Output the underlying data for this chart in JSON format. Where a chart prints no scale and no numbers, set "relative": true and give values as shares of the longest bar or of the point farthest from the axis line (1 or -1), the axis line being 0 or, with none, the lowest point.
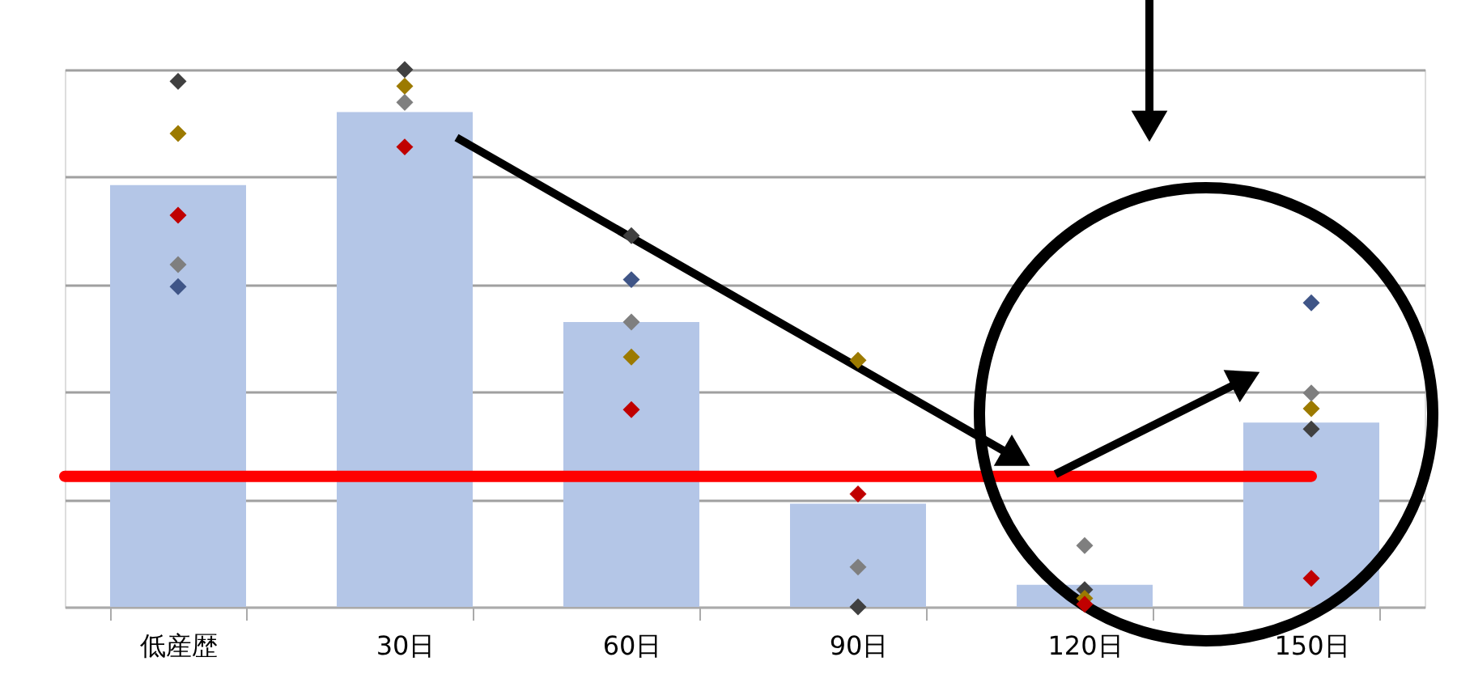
{
  "chart_data": {
    "type": "bar",
    "relative": true,
    "categories": [
      "低産歴",
      "30日",
      "60日",
      "90日",
      "120日",
      "150日"
    ],
    "series": [
      {
        "color": "#b4c6e7",
        "values": [
          0.785,
          0.921,
          0.53,
          0.192,
          0.041,
          0.343
        ]
      },
      {
        "type": "scatter",
        "color": "#404040",
        "values": [
          0.978,
          1,
          0.691,
          0,
          0.032,
          0.331
        ]
      },
      {
        "type": "scatter",
        "color": "#9c7a00",
        "values": [
          0.881,
          0.969,
          0.465,
          0.459,
          0.016,
          0.369
        ]
      },
      {
        "type": "scatter",
        "color": "#c00000",
        "values": [
          0.729,
          0.856,
          0.367,
          0.21,
          0.005,
          0.053
        ]
      },
      {
        "type": "scatter",
        "color": "#7f7f7f",
        "values": [
          0.637,
          0.939,
          0.53,
          0.074,
          0.114,
          0.398
        ]
      },
      {
        "type": "scatter",
        "color": "#3f5587",
        "values": [
          0.596,
          null,
          0.609,
          null,
          null,
          0.566
        ]
      }
    ],
    "ref_lines": [
      {
        "axis": "y",
        "value": 0.243,
        "color": "#ff0000"
      }
    ],
    "marker": "diamond",
    "grid": "y"
  }
}
